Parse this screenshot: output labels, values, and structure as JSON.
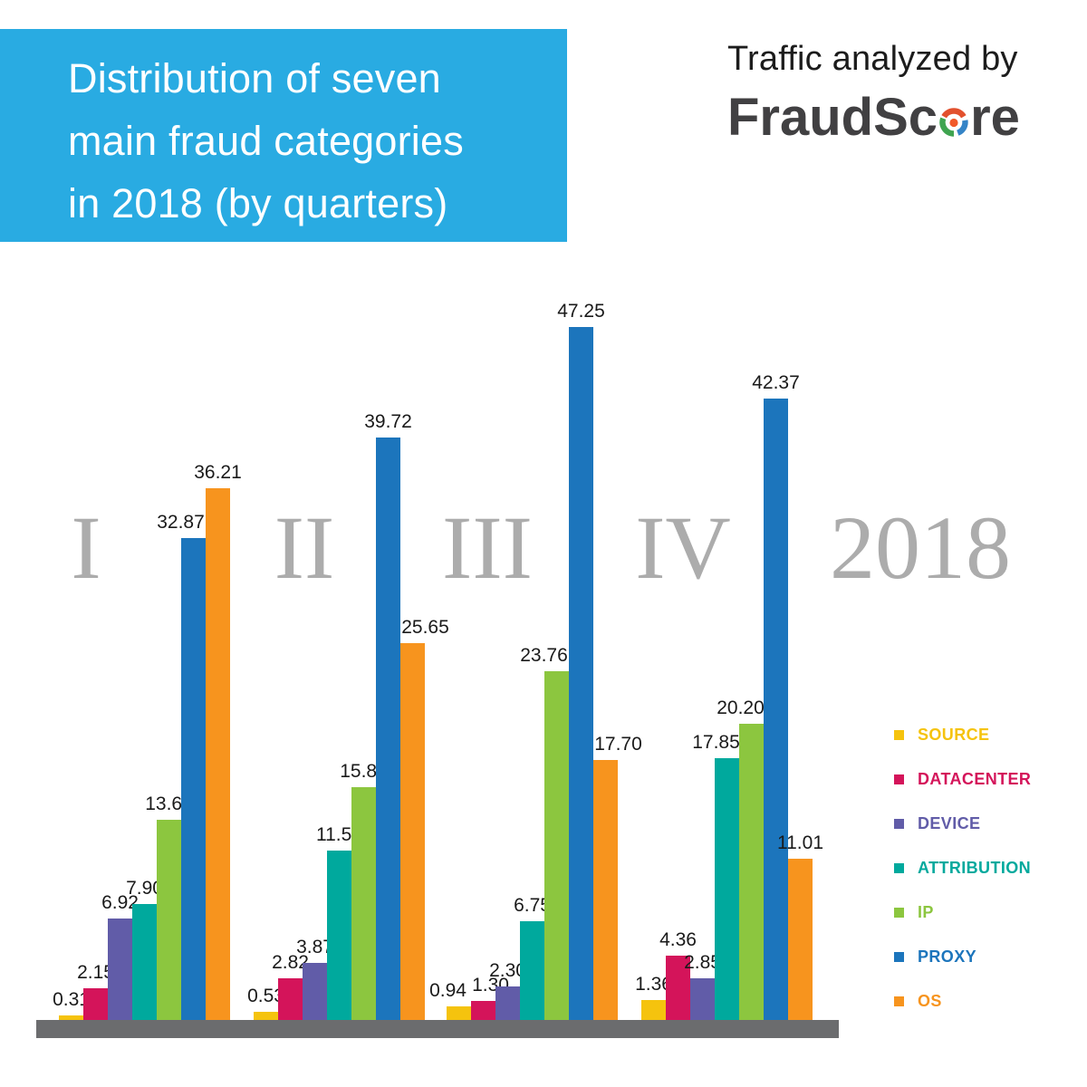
{
  "title": {
    "lines": [
      "Distribution of seven",
      "main fraud categories",
      "in 2018 (by quarters)"
    ],
    "bg_color": "#29ABE2",
    "text_color": "#FFFFFF"
  },
  "brand": {
    "tagline": "Traffic analyzed by",
    "name": "FraudScore",
    "name_pre": "FraudSc",
    "name_post": "re",
    "logo_o_colors": {
      "top_arc": "#E2512E",
      "right_arc": "#3584C7",
      "bottom_left_arc": "#3FA450",
      "center_dot": "#F1592A"
    },
    "tagline_color": "#1C1C1C",
    "name_color": "#414042"
  },
  "chart_data": {
    "type": "bar",
    "title": "Distribution of seven main fraud categories in 2018 (by quarters)",
    "categories": [
      "I",
      "II",
      "III",
      "IV"
    ],
    "year_label": "2018",
    "series": [
      {
        "name": "SOURCE",
        "color": "#F5C30E",
        "values": [
          0.31,
          0.53,
          0.94,
          1.36
        ]
      },
      {
        "name": "DATACENTER",
        "color": "#D4145A",
        "values": [
          2.15,
          2.82,
          1.3,
          4.36
        ]
      },
      {
        "name": "DEVICE",
        "color": "#615CA8",
        "values": [
          6.92,
          3.87,
          2.3,
          2.85
        ]
      },
      {
        "name": "ATTRIBUTION",
        "color": "#00A99D",
        "values": [
          7.9,
          11.57,
          6.75,
          17.85
        ]
      },
      {
        "name": "IP",
        "color": "#8CC63F",
        "values": [
          13.64,
          15.84,
          23.76,
          20.2
        ]
      },
      {
        "name": "PROXY",
        "color": "#1C75BC",
        "values": [
          32.87,
          39.72,
          47.25,
          42.37
        ]
      },
      {
        "name": "OS",
        "color": "#F7941E",
        "values": [
          36.21,
          25.65,
          17.7,
          11.01
        ]
      }
    ],
    "value_labels": true,
    "value_label_format": "2-decimals",
    "legend_position": "right",
    "axes_shown": false,
    "grid": false,
    "ylim": [
      0,
      50
    ],
    "baseline_color": "#6B6C6E",
    "category_marker_color": "#ACACAC"
  }
}
